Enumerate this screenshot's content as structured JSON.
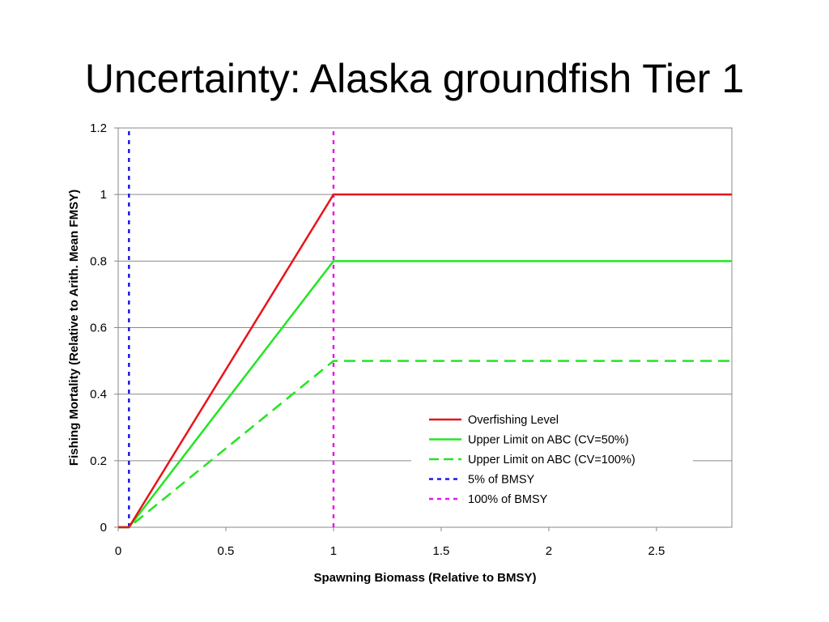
{
  "slide_title": "Uncertainty: Alaska groundfish Tier 1",
  "chart_data": {
    "type": "line",
    "xlabel": "Spawning Biomass (Relative to BMSY)",
    "ylabel": "Fishing Mortality (Relative to Arith. Mean FMSY)",
    "xlim": [
      0,
      2.85
    ],
    "ylim": [
      0,
      1.2
    ],
    "x_ticks": [
      "0",
      "0.5",
      "1",
      "1.5",
      "2",
      "2.5"
    ],
    "x_tick_values": [
      0,
      0.5,
      1,
      1.5,
      2,
      2.5
    ],
    "y_ticks": [
      "0",
      "0.2",
      "0.4",
      "0.6",
      "0.8",
      "1",
      "1.2"
    ],
    "y_tick_values": [
      0,
      0.2,
      0.4,
      0.6,
      0.8,
      1,
      1.2
    ],
    "grid": "horizontal",
    "legend_position": "bottom-right",
    "series": [
      {
        "name": "Overfishing Level",
        "color": "#e8141b",
        "style": "solid",
        "x": [
          0,
          0.05,
          1,
          2.85
        ],
        "y": [
          0,
          0,
          1,
          1
        ]
      },
      {
        "name": "Upper Limit on ABC (CV=50%)",
        "color": "#22e622",
        "style": "solid",
        "x": [
          0,
          0.05,
          1,
          2.85
        ],
        "y": [
          0,
          0,
          0.8,
          0.8
        ]
      },
      {
        "name": "Upper Limit on ABC (CV=100%)",
        "color": "#22e622",
        "style": "dashed",
        "x": [
          0,
          0.05,
          1,
          2.85
        ],
        "y": [
          0,
          0,
          0.5,
          0.5
        ]
      },
      {
        "name": "5% of BMSY",
        "color": "#1a1ae6",
        "style": "dotted",
        "x": [
          0.05,
          0.05
        ],
        "y": [
          0,
          1.2
        ]
      },
      {
        "name": "100% of BMSY",
        "color": "#e61ae6",
        "style": "dotted",
        "x": [
          1,
          1
        ],
        "y": [
          0,
          1.2
        ]
      }
    ]
  }
}
